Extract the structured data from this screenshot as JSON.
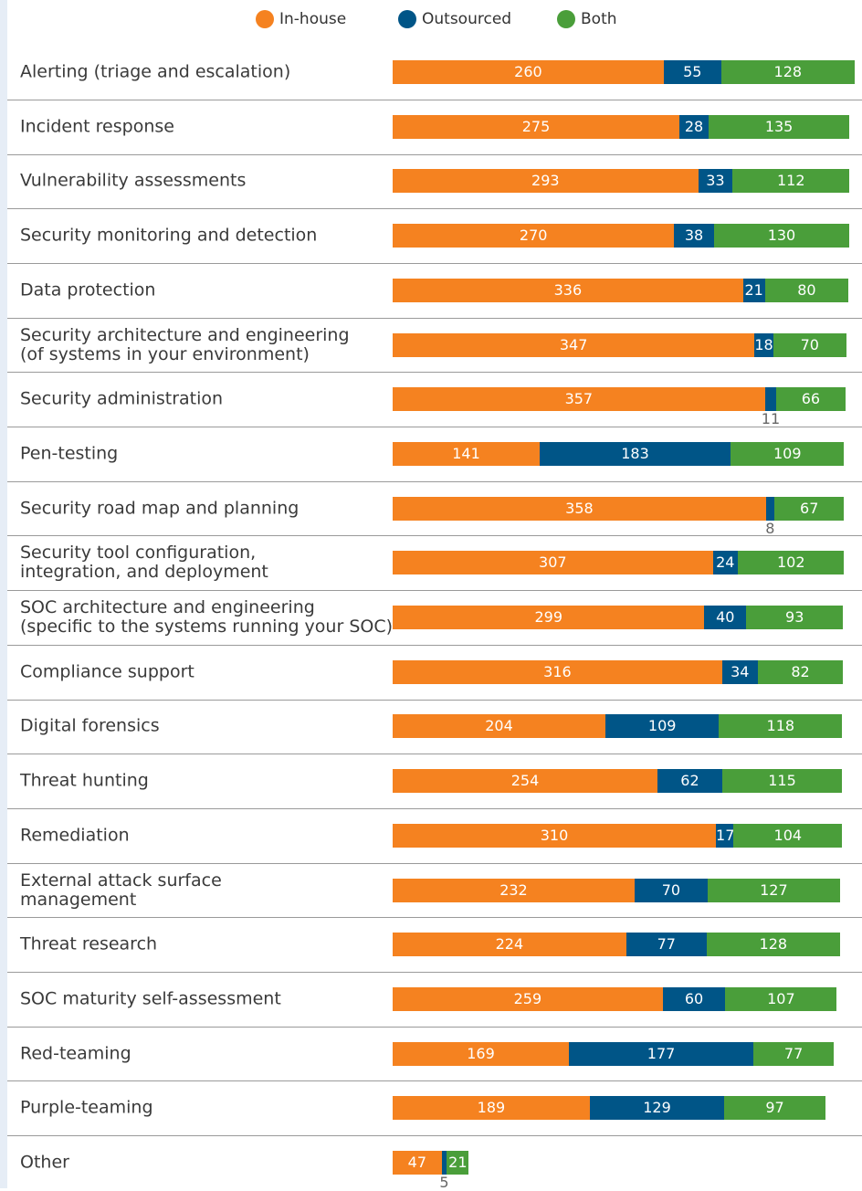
{
  "chart_data": {
    "type": "stacked-bar",
    "orientation": "horizontal",
    "categories": [
      "Alerting (triage and escalation)",
      "Incident response",
      "Vulnerability assessments",
      "Security monitoring and detection",
      "Data protection",
      "Security architecture and engineering\n(of systems in your environment)",
      "Security administration",
      "Pen-testing",
      "Security road map and planning",
      "Security tool configuration,\nintegration, and deployment",
      "SOC architecture and engineering\n(specific to the systems running your SOC)",
      "Compliance support",
      "Digital forensics",
      "Threat hunting",
      "Remediation",
      "External attack surface\nmanagement",
      "Threat research",
      "SOC maturity self-assessment",
      "Red-teaming",
      "Purple-teaming",
      "Other"
    ],
    "series": [
      {
        "name": "In-house",
        "color": "#f58220",
        "values": [
          260,
          275,
          293,
          270,
          336,
          347,
          357,
          141,
          358,
          307,
          299,
          316,
          204,
          254,
          310,
          232,
          224,
          259,
          169,
          189,
          47
        ]
      },
      {
        "name": "Outsourced",
        "color": "#005587",
        "values": [
          55,
          28,
          33,
          38,
          21,
          18,
          11,
          183,
          8,
          24,
          40,
          34,
          109,
          62,
          17,
          70,
          77,
          60,
          177,
          129,
          5
        ]
      },
      {
        "name": "Both",
        "color": "#4a9e3a",
        "values": [
          128,
          135,
          112,
          130,
          80,
          70,
          66,
          109,
          67,
          102,
          93,
          82,
          118,
          115,
          104,
          127,
          128,
          107,
          77,
          97,
          21
        ]
      }
    ],
    "legend": "top"
  }
}
